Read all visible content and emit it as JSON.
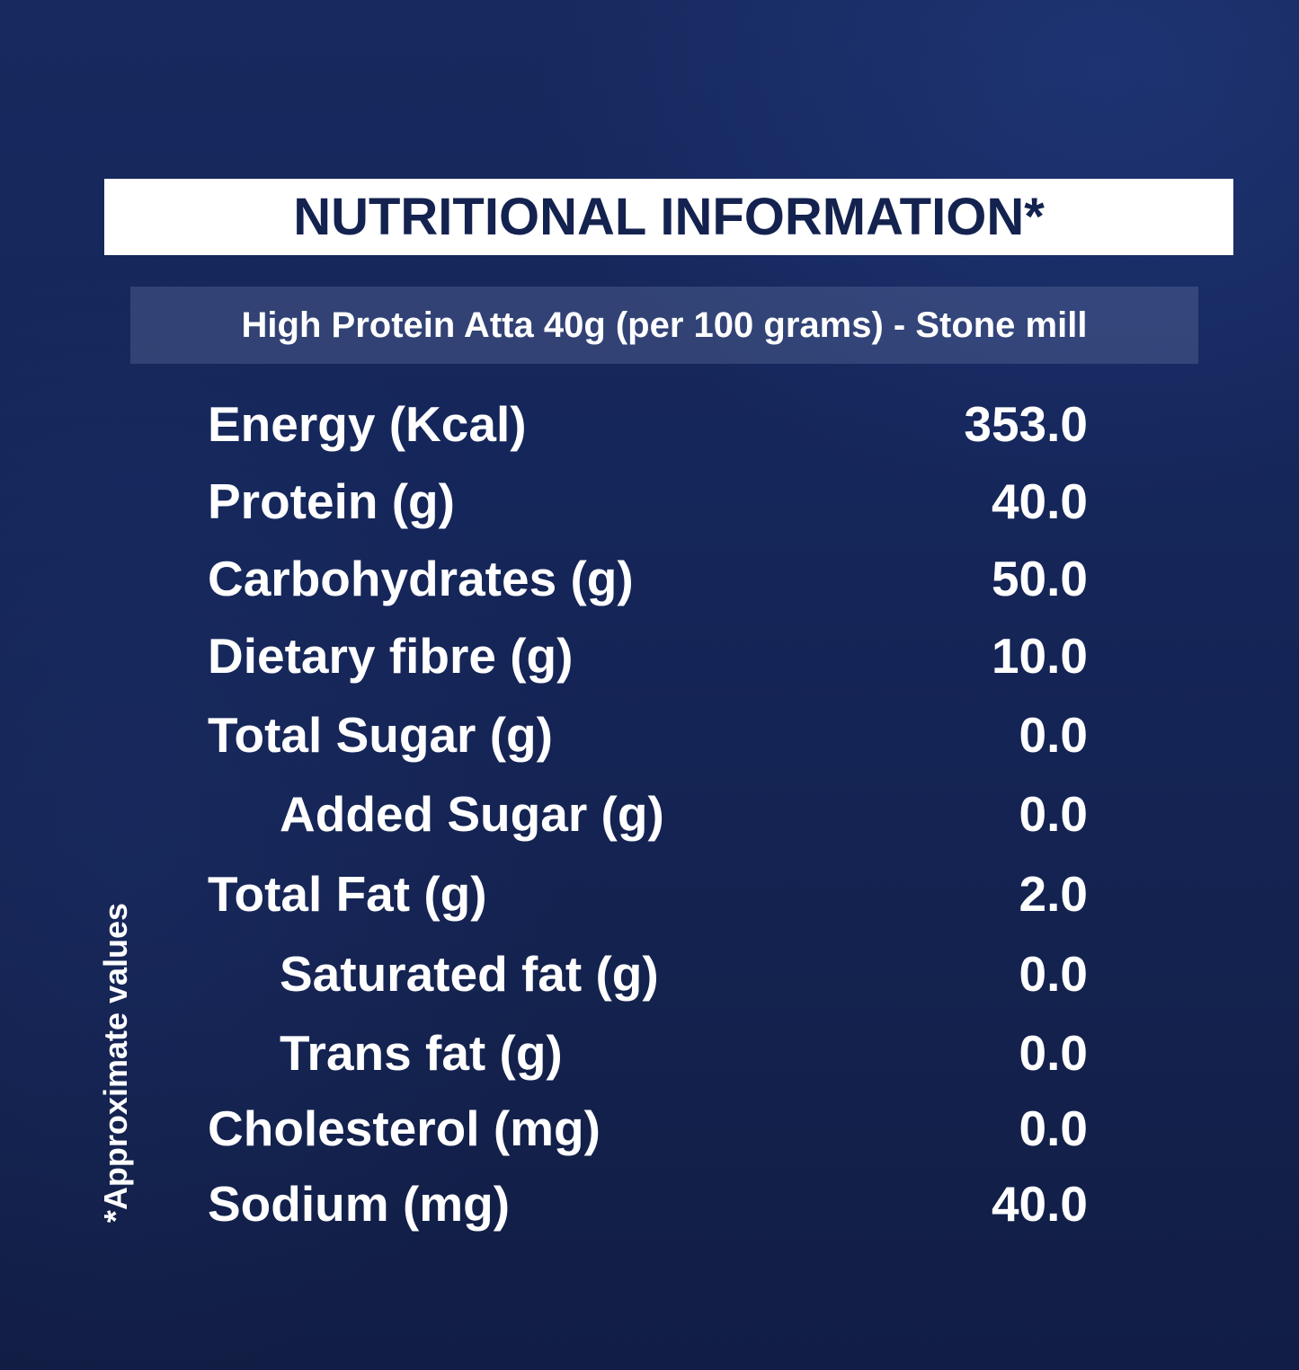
{
  "header": {
    "title": "NUTRITIONAL INFORMATION*",
    "subtitle": "High Protein Atta 40g (per 100 grams) - Stone mill"
  },
  "nutrients": [
    {
      "label": "Energy (Kcal)",
      "value": "353.0",
      "sub": false
    },
    {
      "label": "Protein (g)",
      "value": "40.0",
      "sub": false
    },
    {
      "label": "Carbohydrates (g)",
      "value": "50.0",
      "sub": false
    },
    {
      "label": "Dietary fibre (g)",
      "value": "10.0",
      "sub": false
    },
    {
      "label": "Total Sugar (g)",
      "value": "0.0",
      "sub": false
    },
    {
      "label": "Added Sugar (g)",
      "value": "0.0",
      "sub": true
    },
    {
      "label": "Total Fat (g)",
      "value": "2.0",
      "sub": false
    },
    {
      "label": "Saturated fat (g)",
      "value": "0.0",
      "sub": true
    },
    {
      "label": "Trans fat (g)",
      "value": "0.0",
      "sub": true
    },
    {
      "label": "Cholesterol (mg)",
      "value": "0.0",
      "sub": false
    },
    {
      "label": "Sodium (mg)",
      "value": "40.0",
      "sub": false
    }
  ],
  "footnote": "*Approximate values",
  "colors": {
    "background": "#15265a",
    "title_box": "#ffffff",
    "title_text": "#14224f",
    "text": "#ffffff"
  }
}
